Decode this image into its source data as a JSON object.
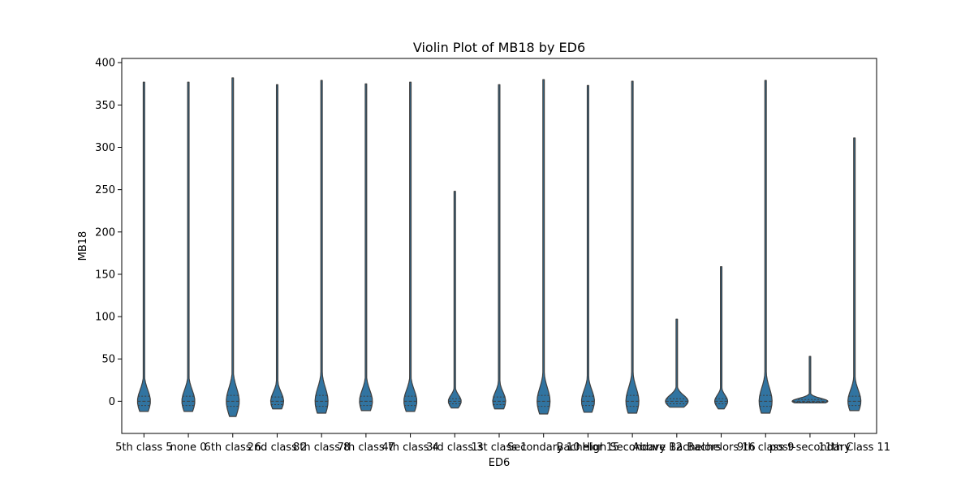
{
  "chart_data": {
    "type": "violin",
    "title": "Violin Plot of MB18 by ED6",
    "xlabel": "ED6",
    "ylabel": "MB18",
    "ylim": [
      -38,
      405
    ],
    "yticks": [
      0,
      50,
      100,
      150,
      200,
      250,
      300,
      350,
      400
    ],
    "grid": false,
    "color": "#3174a1",
    "categories": [
      "5th class 5",
      "none 0",
      "6th class 6",
      "2nd class 2",
      "8th class 8",
      "7th class 7",
      "4th class 4",
      "3rd class 3",
      "1st class 1",
      "Secondary 10",
      "Bachelor 15",
      "High Secondary 12",
      "Above Bachelors",
      "Bachelors 16",
      "9th class 9",
      "post-secondary",
      "11th Class 11"
    ],
    "series": [
      {
        "category": "5th class 5",
        "min": -12,
        "max": 377,
        "q1": -5,
        "median": 0,
        "q3": 6
      },
      {
        "category": "none 0",
        "min": -12,
        "max": 377,
        "q1": -5,
        "median": 0,
        "q3": 6
      },
      {
        "category": "6th class 6",
        "min": -18,
        "max": 382,
        "q1": -6,
        "median": 0,
        "q3": 7
      },
      {
        "category": "2nd class 2",
        "min": -9,
        "max": 374,
        "q1": -4,
        "median": 0,
        "q3": 5
      },
      {
        "category": "8th class 8",
        "min": -14,
        "max": 379,
        "q1": -6,
        "median": 0,
        "q3": 7
      },
      {
        "category": "7th class 7",
        "min": -11,
        "max": 375,
        "q1": -5,
        "median": 0,
        "q3": 6
      },
      {
        "category": "4th class 4",
        "min": -12,
        "max": 377,
        "q1": -5,
        "median": 0,
        "q3": 6
      },
      {
        "category": "3rd class 3",
        "min": -8,
        "max": 248,
        "q1": -3,
        "median": 0,
        "q3": 3
      },
      {
        "category": "1st class 1",
        "min": -9,
        "max": 374,
        "q1": -4,
        "median": 0,
        "q3": 5
      },
      {
        "category": "Secondary 10",
        "min": -15,
        "max": 380,
        "q1": -6,
        "median": 0,
        "q3": 7
      },
      {
        "category": "Bachelor 15",
        "min": -13,
        "max": 373,
        "q1": -5,
        "median": 0,
        "q3": 6
      },
      {
        "category": "High Secondary 12",
        "min": -14,
        "max": 378,
        "q1": -6,
        "median": 0,
        "q3": 7
      },
      {
        "category": "Above Bachelors",
        "min": -7,
        "max": 97,
        "q1": -3,
        "median": 0,
        "q3": 3
      },
      {
        "category": "Bachelors 16",
        "min": -9,
        "max": 159,
        "q1": -3,
        "median": 0,
        "q3": 3
      },
      {
        "category": "9th class 9",
        "min": -14,
        "max": 379,
        "q1": -6,
        "median": 0,
        "q3": 7
      },
      {
        "category": "post-secondary",
        "min": -2,
        "max": 53,
        "q1": -1,
        "median": 0,
        "q3": 2
      },
      {
        "category": "11th Class 11",
        "min": -11,
        "max": 311,
        "q1": -5,
        "median": 0,
        "q3": 6
      }
    ]
  }
}
